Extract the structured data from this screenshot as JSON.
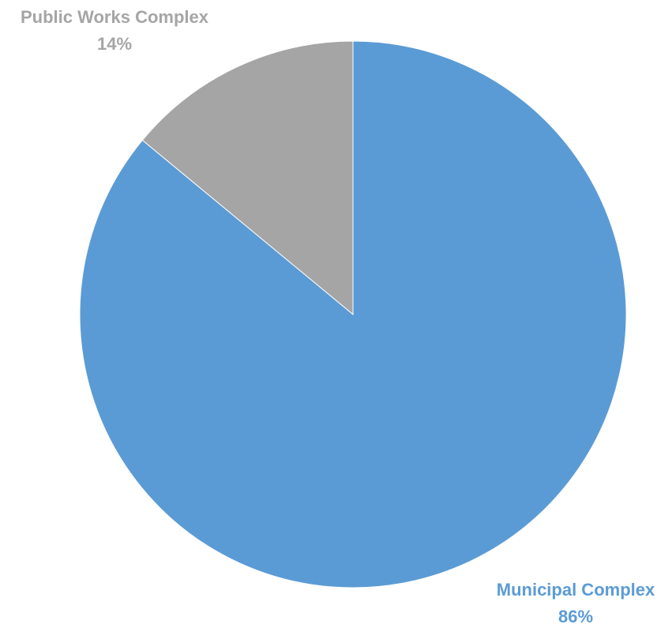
{
  "chart_data": {
    "type": "pie",
    "title": "",
    "slices": [
      {
        "name": "Municipal Complex",
        "value": 86,
        "label": "86%",
        "color": "#5B9BD5"
      },
      {
        "name": "Public Works Complex",
        "value": 14,
        "label": "14%",
        "color": "#A5A5A5"
      }
    ],
    "start_angle_deg": 0,
    "direction": "clockwise",
    "legend": "none",
    "data_labels": "outside"
  }
}
